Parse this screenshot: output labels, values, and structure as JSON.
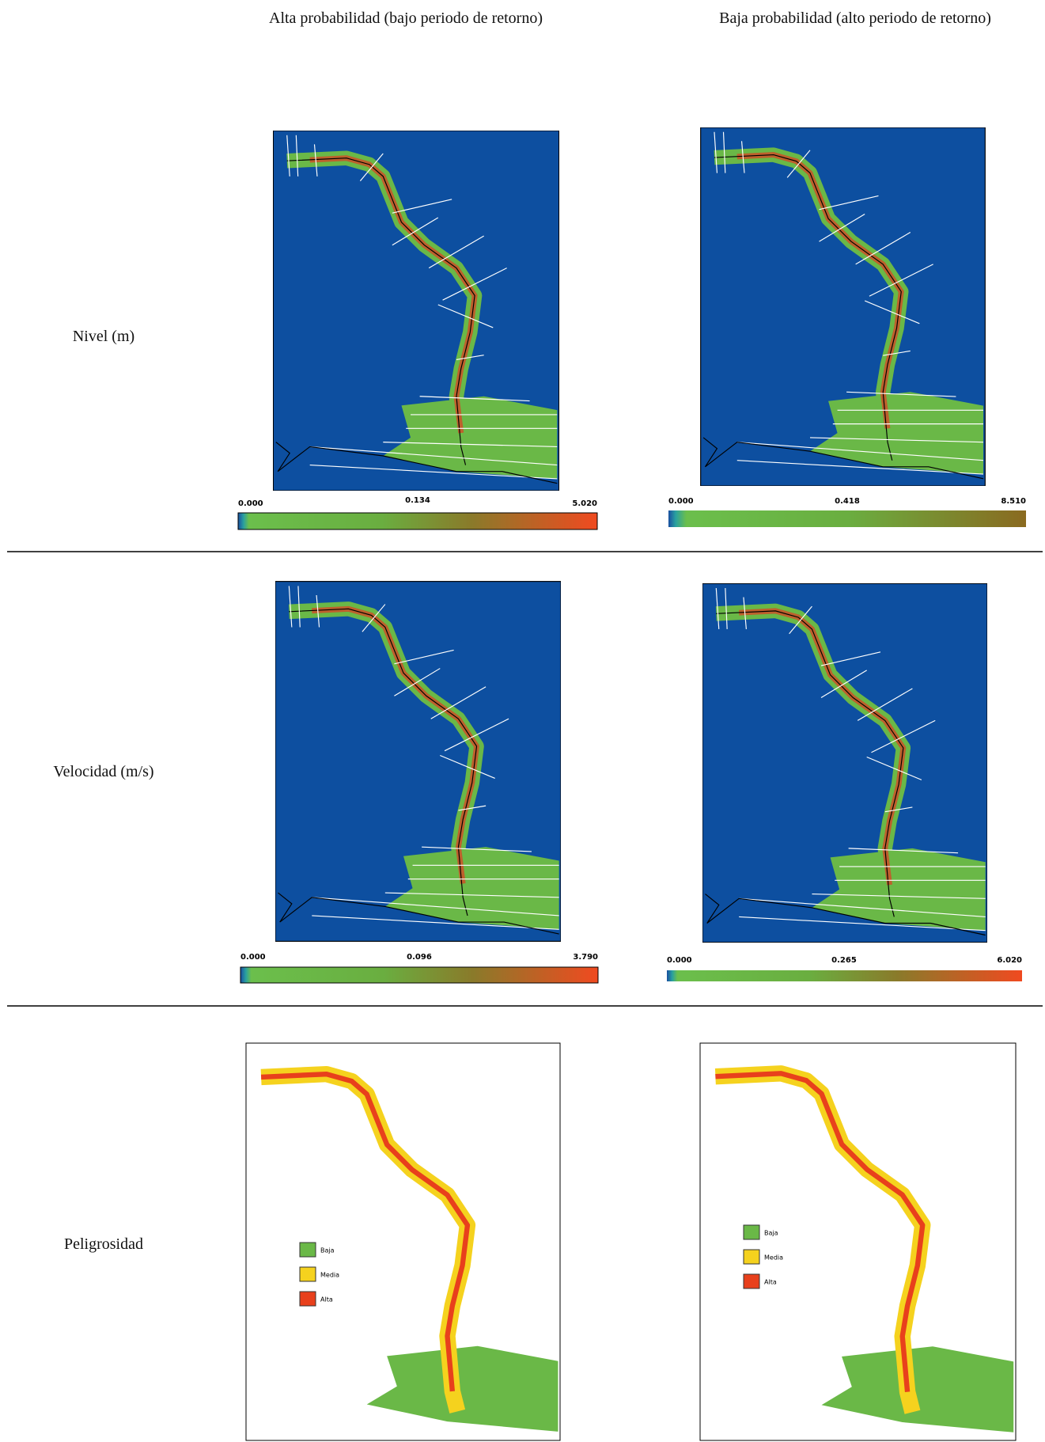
{
  "columns": [
    "Alta probabilidad (bajo periodo de retorno)",
    "Baja probabilidad (alto periodo de retorno)"
  ],
  "rows": [
    {
      "label": "Nivel (m)",
      "scales": [
        [
          "0.000",
          "0.134",
          "5.020"
        ],
        [
          "0.000",
          "0.418",
          "8.510"
        ]
      ]
    },
    {
      "label": "Velocidad (m/s)",
      "scales": [
        [
          "0.000",
          "0.096",
          "3.790"
        ],
        [
          "0.000",
          "0.265",
          "6.020"
        ]
      ]
    },
    {
      "label": "Peligrosidad",
      "legend": [
        [
          "Baja",
          "Media",
          "Alta"
        ],
        [
          "Baja",
          "Media",
          "Alta"
        ]
      ]
    }
  ]
}
